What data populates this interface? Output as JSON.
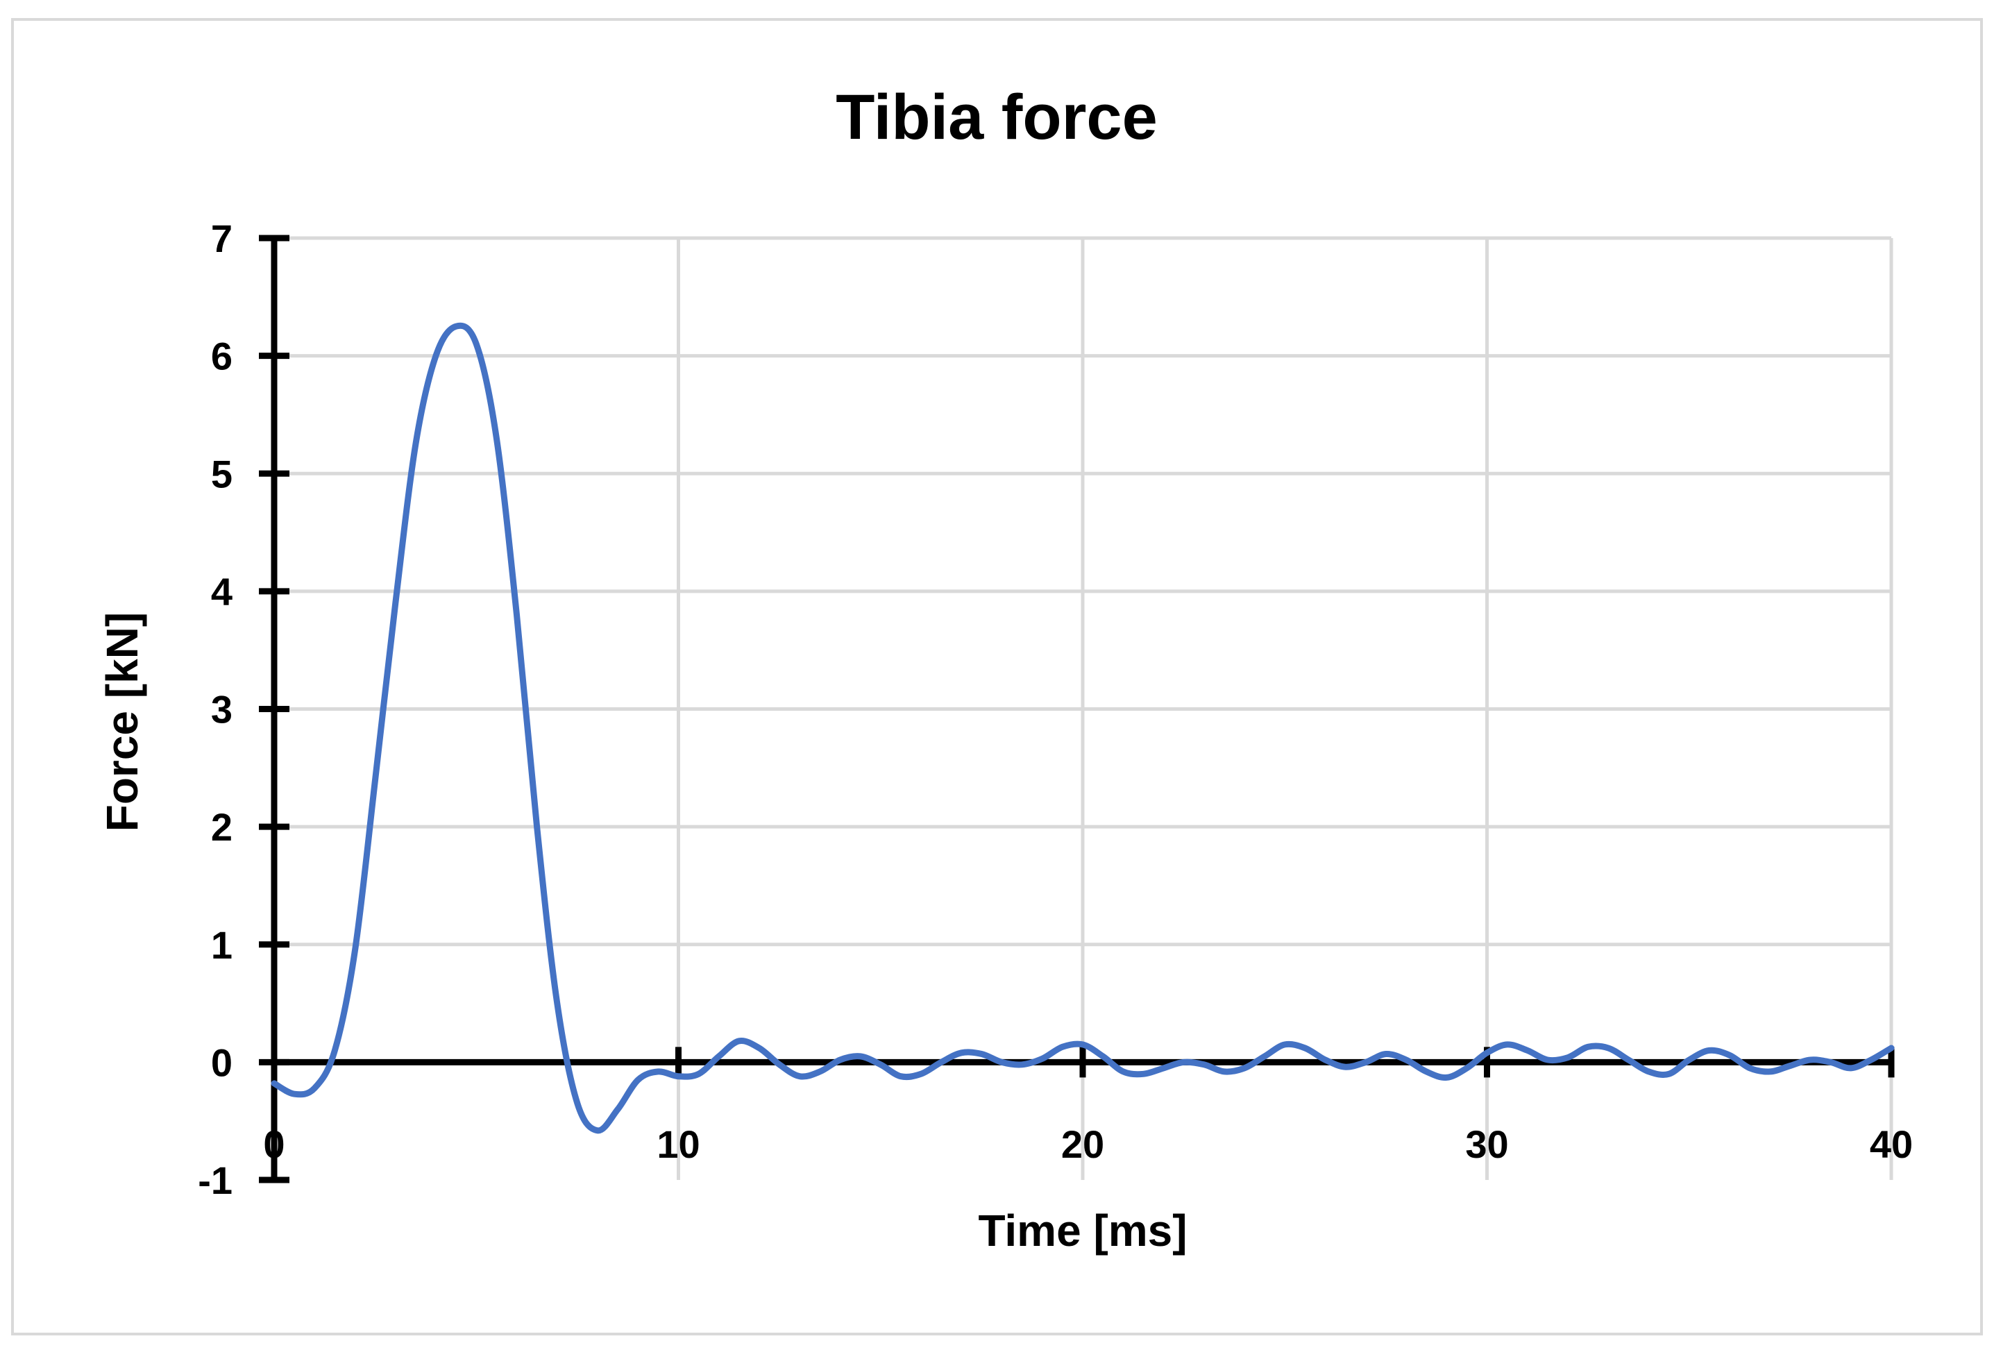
{
  "chart_data": {
    "type": "line",
    "title": "Tibia force",
    "xlabel": "Time [ms]",
    "ylabel": "Force [kN]",
    "xlim": [
      0,
      40
    ],
    "ylim": [
      -1,
      7
    ],
    "xticks": [
      0,
      10,
      20,
      30,
      40
    ],
    "yticks": [
      -1,
      0,
      1,
      2,
      3,
      4,
      5,
      6,
      7
    ],
    "grid": true,
    "legend": "none",
    "series": [
      {
        "color": "#4472C4",
        "x": [
          0,
          0.5,
          1,
          1.5,
          2,
          2.5,
          3,
          3.5,
          4,
          4.5,
          5,
          5.5,
          6,
          6.5,
          7,
          7.5,
          8,
          8.5,
          9,
          9.5,
          10,
          10.5,
          11,
          11.5,
          12,
          12.5,
          13,
          13.5,
          14,
          14.5,
          15,
          15.5,
          16,
          16.5,
          17,
          17.5,
          18,
          18.5,
          19,
          19.5,
          20,
          20.5,
          21,
          21.5,
          22,
          22.5,
          23,
          23.5,
          24,
          24.5,
          25,
          25.5,
          26,
          26.5,
          27,
          27.5,
          28,
          28.5,
          29,
          29.5,
          30,
          30.5,
          31,
          31.5,
          32,
          32.5,
          33,
          33.5,
          34,
          34.5,
          35,
          35.5,
          36,
          36.5,
          37,
          37.5,
          38,
          38.5,
          39,
          39.5,
          40
        ],
        "y": [
          -0.18,
          -0.27,
          -0.22,
          0.1,
          0.95,
          2.4,
          3.9,
          5.25,
          6.0,
          6.25,
          6.1,
          5.3,
          3.8,
          2.0,
          0.5,
          -0.35,
          -0.58,
          -0.4,
          -0.15,
          -0.08,
          -0.12,
          -0.1,
          0.05,
          0.18,
          0.12,
          -0.02,
          -0.12,
          -0.08,
          0.02,
          0.05,
          -0.02,
          -0.12,
          -0.1,
          0.0,
          0.08,
          0.07,
          0.0,
          -0.02,
          0.03,
          0.13,
          0.15,
          0.05,
          -0.08,
          -0.1,
          -0.05,
          0.0,
          -0.02,
          -0.08,
          -0.05,
          0.05,
          0.15,
          0.12,
          0.02,
          -0.04,
          0.0,
          0.07,
          0.02,
          -0.08,
          -0.13,
          -0.05,
          0.08,
          0.15,
          0.1,
          0.02,
          0.04,
          0.13,
          0.12,
          0.02,
          -0.08,
          -0.1,
          0.02,
          0.1,
          0.06,
          -0.05,
          -0.08,
          -0.03,
          0.02,
          0.0,
          -0.05,
          0.02,
          0.12
        ]
      }
    ]
  }
}
